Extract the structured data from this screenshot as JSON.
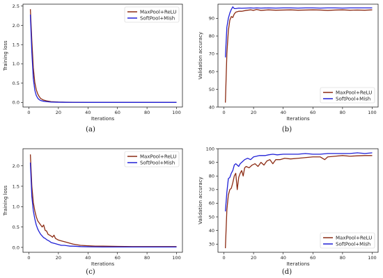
{
  "chart_data": [
    {
      "type": "line",
      "panel_label": "(a)",
      "xlabel": "Iterations",
      "ylabel": "Training loss",
      "xlim": [
        -4,
        104
      ],
      "ylim": [
        -0.12,
        2.55
      ],
      "xticks": [
        0,
        20,
        40,
        60,
        80,
        100
      ],
      "yticks": [
        0.0,
        0.5,
        1.0,
        1.5,
        2.0,
        2.5
      ],
      "ytick_labels": [
        "0.0",
        "0.5",
        "1.0",
        "1.5",
        "2.0",
        "2.5"
      ],
      "legend_position": "top-right",
      "series": [
        {
          "name": "MaxPool+ReLU",
          "color": "#8b2a12",
          "x": [
            1,
            2,
            3,
            4,
            5,
            6,
            7,
            8,
            10,
            12,
            15,
            20,
            25,
            30,
            40,
            60,
            80,
            100
          ],
          "y": [
            2.42,
            1.6,
            0.9,
            0.52,
            0.33,
            0.22,
            0.15,
            0.1,
            0.06,
            0.04,
            0.02,
            0.01,
            0.005,
            0.003,
            0.002,
            0.002,
            0.002,
            0.002
          ]
        },
        {
          "name": "SoftPool+Mish",
          "color": "#1f1fd6",
          "x": [
            1,
            2,
            3,
            4,
            5,
            6,
            7,
            8,
            10,
            12,
            15,
            20,
            25,
            30,
            40,
            60,
            80,
            100
          ],
          "y": [
            2.28,
            1.3,
            0.62,
            0.32,
            0.18,
            0.11,
            0.07,
            0.05,
            0.03,
            0.02,
            0.01,
            0.005,
            0.003,
            0.002,
            0.001,
            0.001,
            0.001,
            0.001
          ]
        }
      ]
    },
    {
      "type": "line",
      "panel_label": "(b)",
      "xlabel": "Iterations",
      "ylabel": "Validation accuracy",
      "xlim": [
        -4,
        104
      ],
      "ylim": [
        40,
        98
      ],
      "xticks": [
        0,
        20,
        40,
        60,
        80,
        100
      ],
      "yticks": [
        40,
        50,
        60,
        70,
        80,
        90
      ],
      "ytick_labels": [
        "40",
        "50",
        "60",
        "70",
        "80",
        "90"
      ],
      "legend_position": "bottom-right",
      "series": [
        {
          "name": "MaxPool+ReLU",
          "color": "#8b2a12",
          "x": [
            1,
            2,
            3,
            4,
            5,
            6,
            7,
            8,
            10,
            12,
            15,
            18,
            20,
            22,
            25,
            30,
            35,
            40,
            45,
            50,
            55,
            60,
            65,
            70,
            75,
            80,
            85,
            90,
            95,
            100
          ],
          "y": [
            42.5,
            70,
            83,
            89,
            91,
            90.5,
            92.5,
            93.5,
            94,
            94,
            94.5,
            94.8,
            94.5,
            95,
            94.5,
            94.8,
            94.6,
            94.7,
            94.8,
            94.6,
            94.7,
            94.8,
            94.7,
            94.5,
            94.7,
            94.8,
            94.6,
            94.7,
            94.6,
            94.8
          ]
        },
        {
          "name": "SoftPool+Mish",
          "color": "#1f1fd6",
          "x": [
            1,
            2,
            3,
            4,
            5,
            6,
            7,
            8,
            10,
            12,
            15,
            18,
            20,
            22,
            25,
            30,
            35,
            40,
            45,
            50,
            55,
            60,
            65,
            70,
            75,
            80,
            85,
            90,
            95,
            100
          ],
          "y": [
            68,
            85,
            90,
            93,
            95,
            96.5,
            95.5,
            95.5,
            95.8,
            95.7,
            95.8,
            95.9,
            95.8,
            95.9,
            95.8,
            95.9,
            95.8,
            95.9,
            95.9,
            95.8,
            95.9,
            95.9,
            95.8,
            95.9,
            95.9,
            95.8,
            95.9,
            95.9,
            95.9,
            95.9
          ]
        }
      ]
    },
    {
      "type": "line",
      "panel_label": "(c)",
      "xlabel": "Iterations",
      "ylabel": "Training loss",
      "xlim": [
        -4,
        104
      ],
      "ylim": [
        -0.12,
        2.42
      ],
      "xticks": [
        0,
        20,
        40,
        60,
        80,
        100
      ],
      "yticks": [
        0.0,
        0.5,
        1.0,
        1.5,
        2.0
      ],
      "ytick_labels": [
        "0.0",
        "0.5",
        "1.0",
        "1.5",
        "2.0"
      ],
      "legend_position": "top-right",
      "series": [
        {
          "name": "MaxPool+ReLU",
          "color": "#8b2a12",
          "x": [
            1,
            2,
            3,
            4,
            5,
            6,
            7,
            8,
            9,
            10,
            11,
            12,
            13,
            14,
            15,
            16,
            17,
            18,
            20,
            22,
            24,
            26,
            28,
            30,
            35,
            40,
            45,
            50,
            60,
            70,
            80,
            90,
            100
          ],
          "y": [
            2.28,
            1.5,
            1.1,
            0.9,
            0.75,
            0.65,
            0.6,
            0.55,
            0.5,
            0.55,
            0.42,
            0.4,
            0.32,
            0.3,
            0.28,
            0.25,
            0.3,
            0.22,
            0.18,
            0.16,
            0.14,
            0.12,
            0.1,
            0.08,
            0.05,
            0.04,
            0.03,
            0.03,
            0.025,
            0.02,
            0.02,
            0.02,
            0.02
          ]
        },
        {
          "name": "SoftPool+Mish",
          "color": "#1f1fd6",
          "x": [
            1,
            2,
            3,
            4,
            5,
            6,
            7,
            8,
            9,
            10,
            11,
            12,
            13,
            14,
            15,
            16,
            18,
            20,
            22,
            24,
            26,
            28,
            30,
            35,
            40,
            50,
            60,
            70,
            80,
            90,
            100
          ],
          "y": [
            2.08,
            1.25,
            0.9,
            0.7,
            0.55,
            0.45,
            0.38,
            0.32,
            0.28,
            0.24,
            0.22,
            0.19,
            0.17,
            0.15,
            0.12,
            0.11,
            0.09,
            0.07,
            0.05,
            0.05,
            0.04,
            0.03,
            0.03,
            0.02,
            0.015,
            0.01,
            0.01,
            0.01,
            0.01,
            0.01,
            0.01
          ]
        }
      ]
    },
    {
      "type": "line",
      "panel_label": "(d)",
      "xlabel": "Iterations",
      "ylabel": "Validation accuracy",
      "xlim": [
        -4,
        104
      ],
      "ylim": [
        24,
        100
      ],
      "xticks": [
        0,
        20,
        40,
        60,
        80,
        100
      ],
      "yticks": [
        30,
        40,
        50,
        60,
        70,
        80,
        90,
        100
      ],
      "ytick_labels": [
        "30",
        "40",
        "50",
        "60",
        "70",
        "80",
        "90",
        "100"
      ],
      "legend_position": "bottom-right",
      "series": [
        {
          "name": "MaxPool+ReLU",
          "color": "#8b2a12",
          "x": [
            1,
            2,
            3,
            4,
            5,
            6,
            7,
            8,
            9,
            10,
            11,
            12,
            13,
            14,
            15,
            17,
            19,
            21,
            23,
            25,
            27,
            29,
            31,
            33,
            35,
            38,
            41,
            45,
            50,
            55,
            60,
            65,
            68,
            70,
            75,
            80,
            85,
            90,
            95,
            100
          ],
          "y": [
            27,
            55,
            66,
            70,
            71,
            75,
            80,
            82,
            70,
            79,
            82,
            84,
            80,
            86,
            87,
            86,
            88,
            89,
            87,
            90,
            88,
            91,
            92,
            89,
            92,
            92,
            93,
            92.5,
            93,
            93.5,
            94,
            94,
            92,
            94,
            94.5,
            95,
            94.5,
            94.8,
            95,
            95
          ]
        },
        {
          "name": "SoftPool+Mish",
          "color": "#1f1fd6",
          "x": [
            1,
            2,
            3,
            4,
            5,
            6,
            7,
            8,
            9,
            10,
            11,
            12,
            14,
            16,
            18,
            20,
            22,
            24,
            26,
            28,
            30,
            33,
            36,
            40,
            45,
            50,
            55,
            60,
            65,
            70,
            75,
            80,
            85,
            90,
            95,
            100
          ],
          "y": [
            54,
            68,
            78,
            79,
            82,
            84,
            88,
            89,
            88,
            87,
            89,
            90,
            92,
            93,
            92,
            94,
            94.5,
            95,
            95,
            95,
            95.5,
            96,
            95.5,
            96,
            96,
            96,
            96.5,
            96,
            96,
            96.5,
            96.5,
            96.5,
            96.5,
            97,
            96.5,
            97
          ]
        }
      ]
    }
  ]
}
